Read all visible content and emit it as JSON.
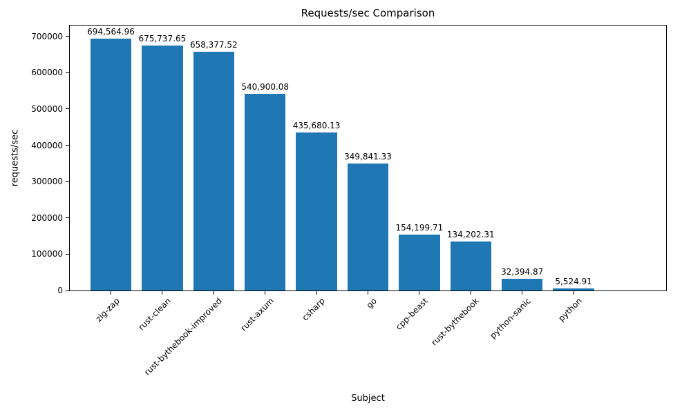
{
  "chart_data": {
    "type": "bar",
    "title": "Requests/sec Comparison",
    "xlabel": "Subject",
    "ylabel": "requests/sec",
    "categories": [
      "zig-zap",
      "rust-clean",
      "rust-bythebook-improved",
      "rust-axum",
      "csharp",
      "go",
      "cpp-beast",
      "rust-bythebook",
      "python-sanic",
      "python"
    ],
    "values": [
      694564.96,
      675737.65,
      658377.52,
      540900.08,
      435680.13,
      349841.33,
      154199.71,
      134202.31,
      32394.87,
      5524.91
    ],
    "value_labels": [
      "694,564.96",
      "675,737.65",
      "658,377.52",
      "540,900.08",
      "435,680.13",
      "349,841.33",
      "154,199.71",
      "134,202.31",
      "32,394.87",
      "5,524.91"
    ],
    "yticks": [
      0,
      100000,
      200000,
      300000,
      400000,
      500000,
      600000,
      700000
    ],
    "ytick_labels": [
      "0",
      "100000",
      "200000",
      "300000",
      "400000",
      "500000",
      "600000",
      "700000"
    ],
    "ylim": [
      0,
      730000
    ],
    "bar_color": "#1f77b4",
    "grid": false,
    "legend_position": "none"
  }
}
